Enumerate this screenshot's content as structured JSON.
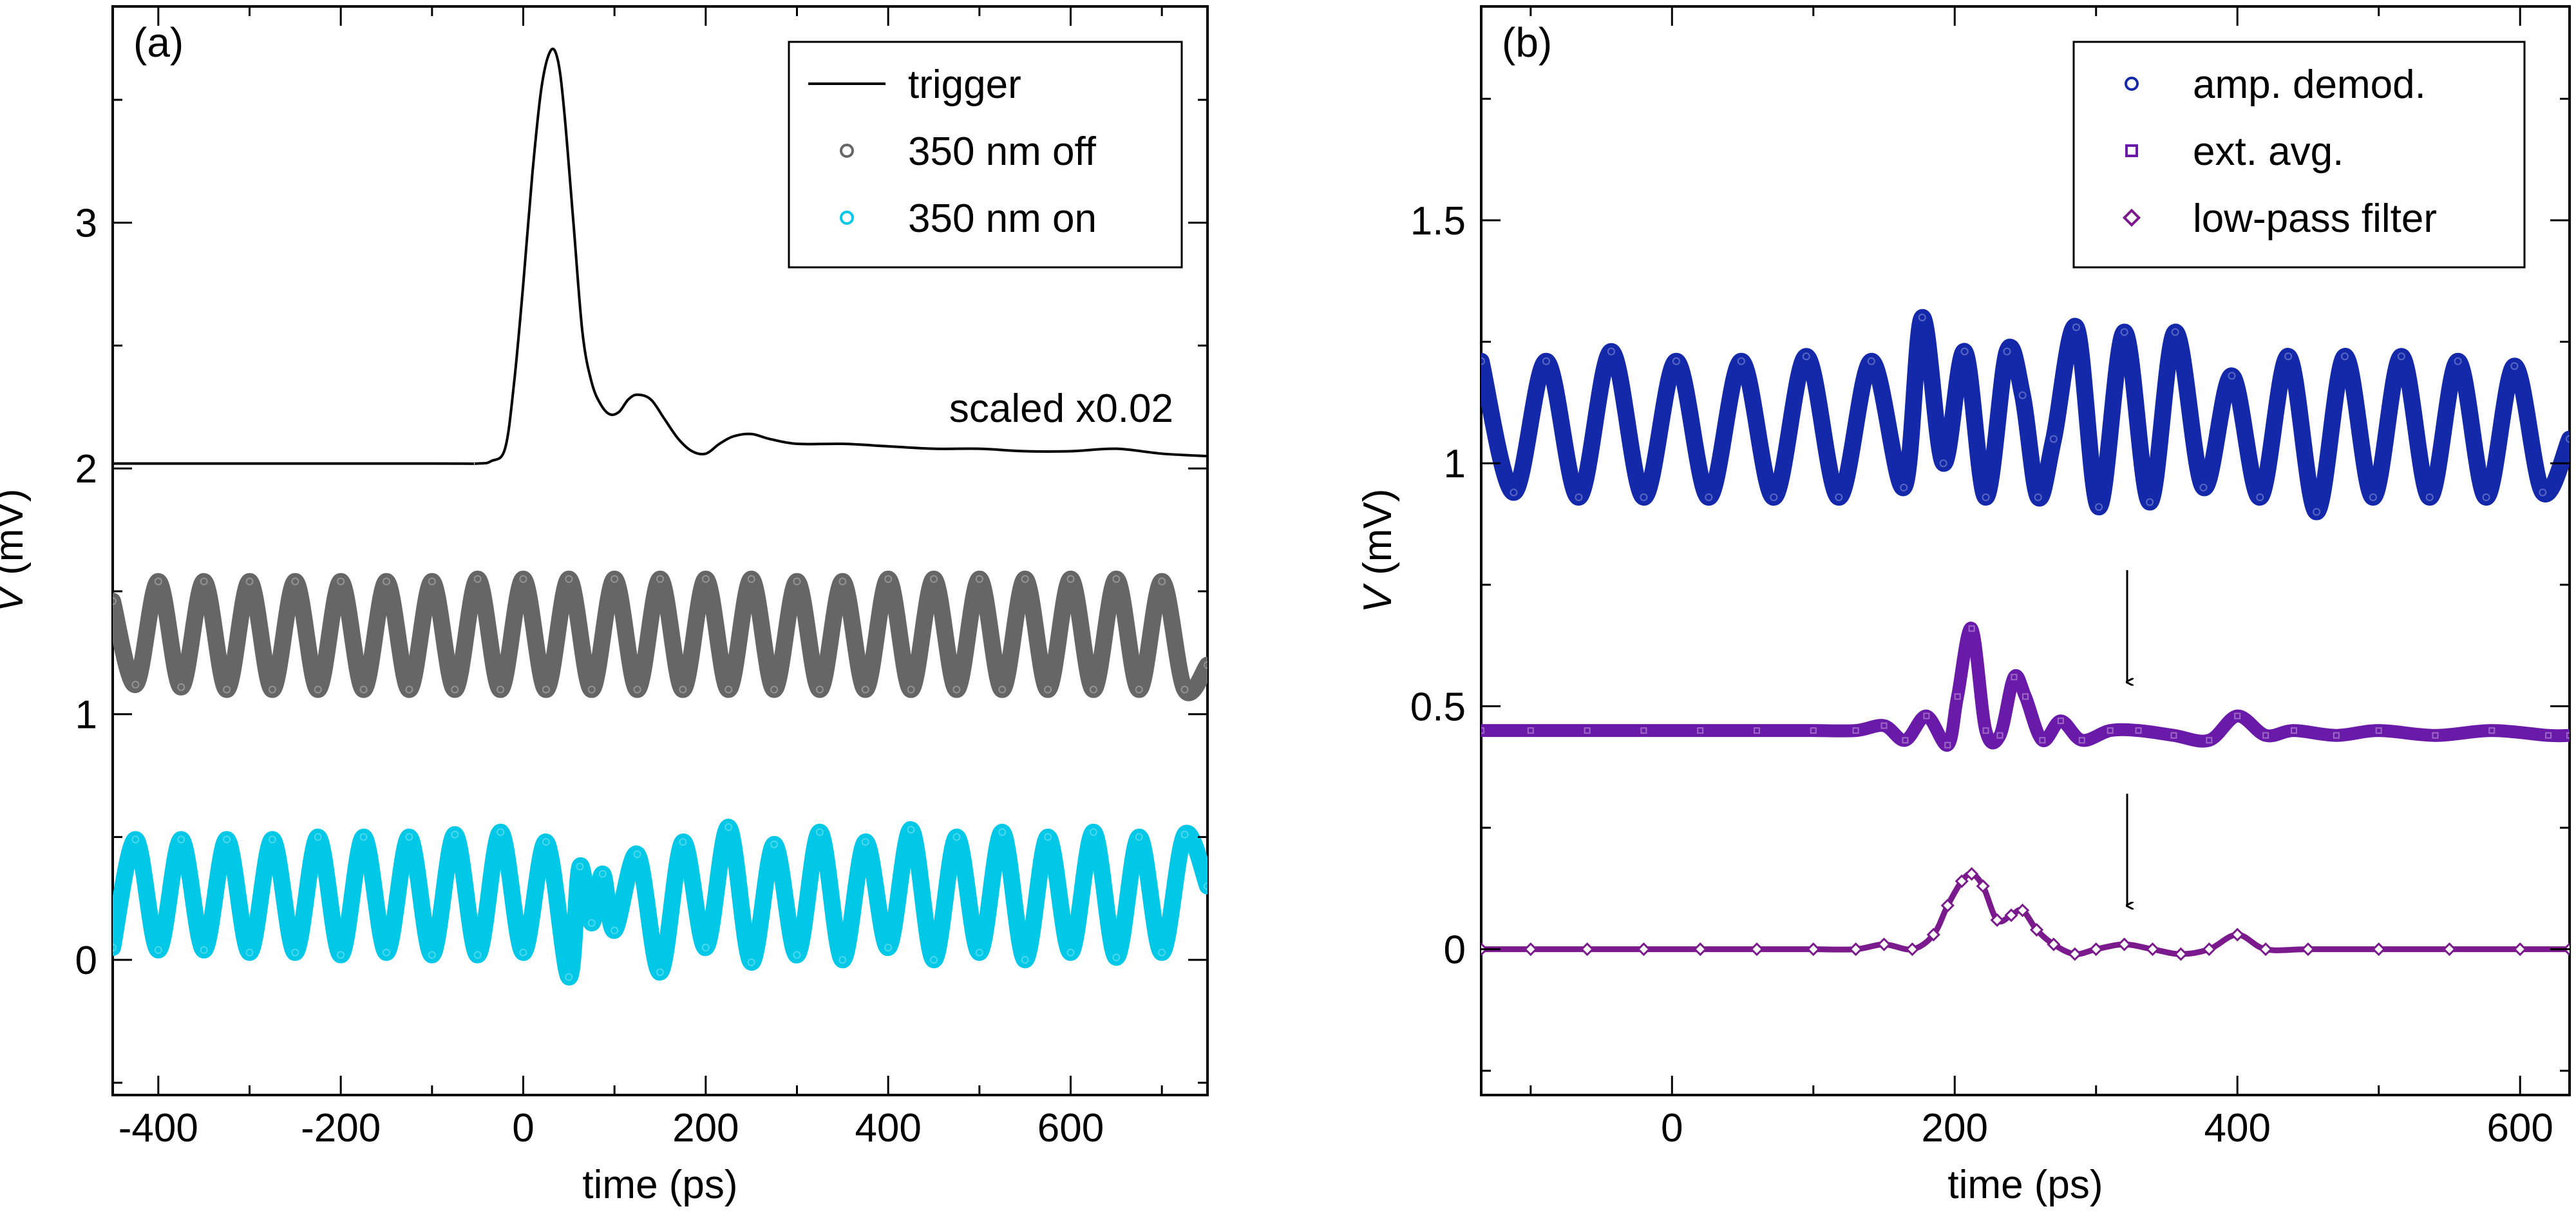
{
  "chart_data": [
    {
      "type": "line",
      "panel_label": "(a)",
      "xlabel": "time (ps)",
      "ylabel_var": "V",
      "ylabel_unit": " (mV)",
      "xlim": [
        -450,
        750
      ],
      "ylim": [
        -0.55,
        3.88
      ],
      "xticks": [
        -400,
        -200,
        0,
        200,
        400,
        600
      ],
      "xtick_labels": [
        "-400",
        "-200",
        "0",
        "200",
        "400",
        "600"
      ],
      "yticks": [
        0,
        1,
        2,
        3
      ],
      "ytick_labels": [
        "0",
        "1",
        "2",
        "3"
      ],
      "legend": {
        "placement": "top-right",
        "entries": [
          {
            "label": "trigger",
            "marker": "line",
            "color": "#000000"
          },
          {
            "label": "350 nm off",
            "marker": "circle",
            "color": "#666666"
          },
          {
            "label": "350 nm on",
            "marker": "circle",
            "color": "#00c8e6"
          }
        ]
      },
      "annotation": "scaled x0.02",
      "series": [
        {
          "name": "trigger",
          "style": "line",
          "color": "#000000",
          "x": [
            -450,
            -100,
            -50,
            -35,
            -20,
            -10,
            0,
            10,
            20,
            30,
            38,
            45,
            55,
            65,
            75,
            85,
            95,
            105,
            115,
            125,
            140,
            155,
            170,
            185,
            200,
            215,
            230,
            250,
            270,
            300,
            350,
            400,
            450,
            500,
            550,
            600,
            650,
            700,
            750
          ],
          "values": [
            2.02,
            2.02,
            2.02,
            2.03,
            2.08,
            2.35,
            2.75,
            3.2,
            3.55,
            3.7,
            3.66,
            3.45,
            3.0,
            2.55,
            2.35,
            2.26,
            2.22,
            2.23,
            2.28,
            2.3,
            2.28,
            2.2,
            2.12,
            2.07,
            2.06,
            2.1,
            2.13,
            2.14,
            2.12,
            2.1,
            2.1,
            2.09,
            2.08,
            2.08,
            2.07,
            2.07,
            2.08,
            2.06,
            2.05
          ]
        },
        {
          "name": "350 nm off",
          "style": "thick-circles",
          "color": "#666666",
          "x": [
            -450,
            -425,
            -400,
            -375,
            -350,
            -325,
            -300,
            -275,
            -250,
            -225,
            -200,
            -175,
            -150,
            -125,
            -100,
            -75,
            -50,
            -25,
            0,
            25,
            50,
            75,
            100,
            125,
            150,
            175,
            200,
            225,
            250,
            275,
            300,
            325,
            350,
            375,
            400,
            425,
            450,
            475,
            500,
            525,
            550,
            575,
            600,
            625,
            650,
            675,
            700,
            725,
            750
          ],
          "values": [
            1.46,
            1.12,
            1.54,
            1.11,
            1.54,
            1.1,
            1.54,
            1.1,
            1.54,
            1.1,
            1.54,
            1.1,
            1.54,
            1.1,
            1.54,
            1.1,
            1.55,
            1.1,
            1.55,
            1.1,
            1.55,
            1.1,
            1.55,
            1.1,
            1.55,
            1.1,
            1.55,
            1.1,
            1.55,
            1.1,
            1.54,
            1.1,
            1.54,
            1.1,
            1.55,
            1.1,
            1.55,
            1.1,
            1.55,
            1.1,
            1.55,
            1.1,
            1.55,
            1.1,
            1.55,
            1.1,
            1.54,
            1.1,
            1.2
          ]
        },
        {
          "name": "350 nm on",
          "style": "thick-circles",
          "color": "#00c8e6",
          "x": [
            -450,
            -425,
            -400,
            -375,
            -350,
            -325,
            -300,
            -275,
            -250,
            -225,
            -200,
            -175,
            -150,
            -125,
            -100,
            -75,
            -50,
            -25,
            0,
            25,
            50,
            62,
            75,
            87,
            100,
            125,
            150,
            175,
            200,
            225,
            250,
            275,
            300,
            325,
            350,
            375,
            400,
            425,
            450,
            475,
            500,
            525,
            550,
            575,
            600,
            625,
            650,
            675,
            700,
            725,
            750
          ],
          "values": [
            0.05,
            0.49,
            0.04,
            0.49,
            0.04,
            0.49,
            0.03,
            0.49,
            0.03,
            0.5,
            0.02,
            0.5,
            0.03,
            0.5,
            0.02,
            0.51,
            0.02,
            0.52,
            0.03,
            0.48,
            -0.07,
            0.38,
            0.15,
            0.35,
            0.12,
            0.43,
            -0.05,
            0.48,
            0.05,
            0.54,
            -0.01,
            0.47,
            0.02,
            0.52,
            0.0,
            0.48,
            0.05,
            0.53,
            0.0,
            0.5,
            0.03,
            0.52,
            0.0,
            0.5,
            0.03,
            0.52,
            0.01,
            0.5,
            0.03,
            0.51,
            0.3
          ]
        }
      ]
    },
    {
      "type": "line",
      "panel_label": "(b)",
      "xlabel": "time (ps)",
      "ylabel_var": "V",
      "ylabel_unit": " (mV)",
      "xlim": [
        -135,
        635
      ],
      "ylim": [
        -0.3,
        1.94
      ],
      "xticks": [
        0,
        200,
        400,
        600
      ],
      "xtick_labels": [
        "0",
        "200",
        "400",
        "600"
      ],
      "yticks": [
        0,
        0.5,
        1,
        1.5
      ],
      "ytick_labels": [
        "0",
        "0.5",
        "1",
        "1.5"
      ],
      "legend": {
        "placement": "top-right",
        "entries": [
          {
            "label": "amp. demod.",
            "marker": "circle",
            "color": "#1428aa"
          },
          {
            "label": "ext. avg.",
            "marker": "square",
            "color": "#6a1aa8"
          },
          {
            "label": "low-pass filter",
            "marker": "diamond",
            "color": "#7a1a8c"
          }
        ]
      },
      "arrows": [
        {
          "x": 322,
          "y_start": 0.78,
          "y_end": 0.55
        },
        {
          "x": 322,
          "y_start": 0.32,
          "y_end": 0.09
        }
      ],
      "series": [
        {
          "name": "amp. demod.",
          "style": "thick-circles",
          "color": "#1428aa",
          "x": [
            -135,
            -112,
            -89,
            -66,
            -43,
            -20,
            3,
            26,
            49,
            72,
            95,
            118,
            141,
            164,
            177,
            192,
            207,
            222,
            237,
            248,
            259,
            270,
            286,
            302,
            320,
            338,
            356,
            376,
            396,
            416,
            436,
            456,
            476,
            496,
            516,
            536,
            556,
            576,
            596,
            616,
            635
          ],
          "values": [
            1.21,
            0.94,
            1.21,
            0.93,
            1.23,
            0.93,
            1.21,
            0.93,
            1.21,
            0.93,
            1.22,
            0.93,
            1.21,
            0.95,
            1.3,
            1.0,
            1.23,
            0.93,
            1.23,
            1.14,
            0.93,
            1.05,
            1.28,
            0.91,
            1.27,
            0.92,
            1.27,
            0.95,
            1.18,
            0.93,
            1.22,
            0.9,
            1.22,
            0.93,
            1.22,
            0.93,
            1.21,
            0.93,
            1.2,
            0.94,
            1.05
          ]
        },
        {
          "name": "ext. avg.",
          "style": "thick-squares",
          "color": "#6a1aa8",
          "x": [
            -135,
            -100,
            -60,
            -20,
            20,
            60,
            100,
            130,
            150,
            165,
            180,
            195,
            202,
            212,
            222,
            232,
            242,
            250,
            262,
            275,
            290,
            310,
            330,
            355,
            380,
            400,
            420,
            440,
            470,
            500,
            540,
            580,
            620,
            635
          ],
          "values": [
            0.45,
            0.45,
            0.45,
            0.45,
            0.45,
            0.45,
            0.45,
            0.45,
            0.46,
            0.43,
            0.48,
            0.42,
            0.52,
            0.66,
            0.45,
            0.44,
            0.56,
            0.52,
            0.43,
            0.47,
            0.43,
            0.45,
            0.45,
            0.44,
            0.43,
            0.48,
            0.44,
            0.45,
            0.44,
            0.45,
            0.44,
            0.45,
            0.44,
            0.44
          ]
        },
        {
          "name": "low-pass filter",
          "style": "diamonds",
          "color": "#7a1a8c",
          "x": [
            -135,
            -100,
            -60,
            -20,
            20,
            60,
            100,
            130,
            150,
            170,
            185,
            195,
            205,
            212,
            220,
            230,
            240,
            248,
            258,
            270,
            285,
            300,
            320,
            340,
            360,
            380,
            400,
            420,
            450,
            500,
            550,
            600,
            635
          ],
          "values": [
            0.0,
            0.0,
            0.0,
            0.0,
            0.0,
            0.0,
            0.0,
            0.0,
            0.01,
            0.0,
            0.03,
            0.09,
            0.14,
            0.155,
            0.13,
            0.06,
            0.07,
            0.08,
            0.04,
            0.01,
            -0.01,
            0.0,
            0.01,
            0.0,
            -0.01,
            0.0,
            0.03,
            0.0,
            0.0,
            0.0,
            0.0,
            0.0,
            0.0
          ]
        }
      ]
    }
  ]
}
